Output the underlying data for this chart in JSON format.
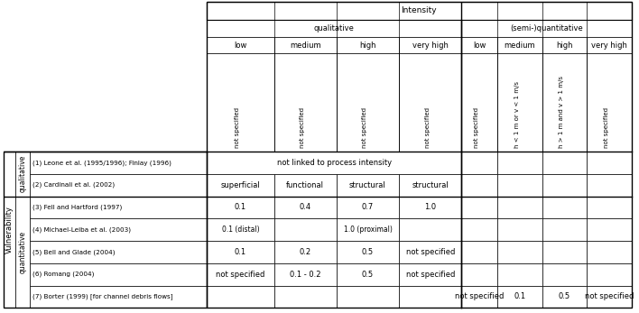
{
  "vuln_label": "Vulnerability",
  "qual_label": "qualitative",
  "quant_label": "quantitative",
  "intensity_label": "Intensity",
  "qualitative_label": "qualitative",
  "semiquant_label": "(semi-)quantitative",
  "row3_labels": [
    "low",
    "medium",
    "high",
    "very high",
    "low",
    "medium",
    "high",
    "very high"
  ],
  "row4_labels": [
    "not specified",
    "not specified",
    "not specified",
    "not specified",
    "not specified",
    "h < 1 m or v < 1 m/s",
    "h > 1 m and v > 1 m/s",
    "not specified"
  ],
  "data_rows": [
    {
      "id": "(1) Leone et al. (1995/1996); Finlay (1996)",
      "type": "qual",
      "cells": {
        "span4": "not linked to process intensity"
      }
    },
    {
      "id": "(2) Cardinali et al. (2002)",
      "type": "qual",
      "cells": {
        "c0": "superficial",
        "c1": "functional",
        "c2": "structural",
        "c3": "structural"
      }
    },
    {
      "id": "(3) Fell and Hartford (1997)",
      "type": "quant",
      "cells": {
        "c0": "0.1",
        "c1": "0.4",
        "c2": "0.7",
        "c3": "1.0"
      }
    },
    {
      "id": "(4) Michael-Leiba et al. (2003)",
      "type": "quant",
      "cells": {
        "c0": "0.1 (distal)",
        "c2": "1.0 (proximal)"
      }
    },
    {
      "id": "(5) Bell and Glade (2004)",
      "type": "quant",
      "cells": {
        "c0": "0.1",
        "c1": "0.2",
        "c2": "0.5",
        "c3": "not specified"
      }
    },
    {
      "id": "(6) Romang (2004)",
      "type": "quant",
      "cells": {
        "c0": "not specified",
        "c1": "0.1 - 0.2",
        "c2": "0.5",
        "c3": "not specified"
      }
    },
    {
      "id": "(7) Borter (1999) [for channel debris flows]",
      "type": "quant_semi",
      "cells": {
        "s0": "not specified",
        "s1": "0.1",
        "s2": "0.5",
        "s3": "not specified"
      }
    }
  ],
  "font_size": 6.0,
  "line_color": "#000000",
  "bg_color": "#ffffff"
}
